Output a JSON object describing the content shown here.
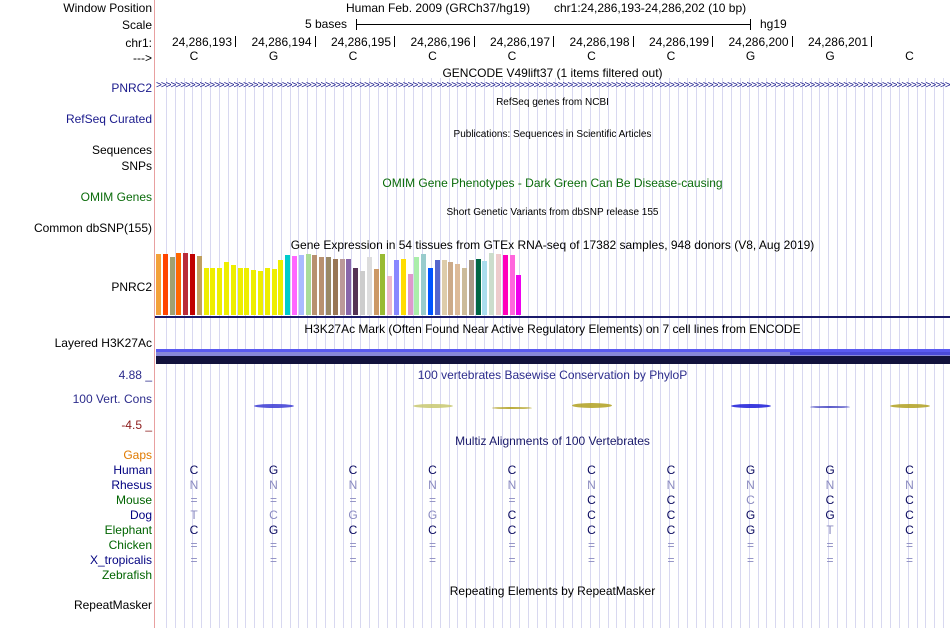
{
  "header": {
    "window_position_label": "Window Position",
    "assembly": "Human Feb. 2009 (GRCh37/hg19)",
    "position": "chr1:24,286,193-24,286,202 (10 bp)",
    "scale_label": "Scale",
    "scale_text": "5 bases",
    "db": "hg19",
    "chrom_label": "chr1:",
    "strand_label": "--->",
    "coords": [
      "24,286,193",
      "24,286,194",
      "24,286,195",
      "24,286,196",
      "24,286,197",
      "24,286,198",
      "24,286,199",
      "24,286,200",
      "24,286,201"
    ],
    "bases": [
      "C",
      "G",
      "C",
      "C",
      "C",
      "C",
      "C",
      "G",
      "G",
      "C"
    ]
  },
  "tracks": {
    "gencode_title": "GENCODE V49lift37 (1 items filtered out)",
    "gencode_gene": "PNRC2",
    "refseq_title": "RefSeq genes from NCBI",
    "refseq_label": "RefSeq Curated",
    "publications_title": "Publications: Sequences in Scientific Articles",
    "sequences_label": "Sequences",
    "snps_label": "SNPs",
    "omim_title": "OMIM Gene Phenotypes - Dark Green Can Be Disease-causing",
    "omim_label": "OMIM Genes",
    "dbsnp_title": "Short Genetic Variants from dbSNP release 155",
    "dbsnp_label": "Common dbSNP(155)",
    "gtex_title": "Gene Expression in 54 tissues from GTEx RNA-seq of 17382 samples, 948 donors (V8, Aug 2019)",
    "gtex_gene": "PNRC2",
    "h3k27ac_title": "H3K27Ac Mark (Often Found Near Active Regulatory Elements) on 7 cell lines from ENCODE",
    "h3k27ac_label": "Layered H3K27Ac",
    "phylop_title": "100 vertebrates Basewise Conservation by PhyloP",
    "cons_label": "100 Vert. Cons",
    "cons_max": "4.88 _",
    "cons_min": "-4.5 _",
    "multiz_title": "Multiz Alignments of 100 Vertebrates",
    "gaps_label": "Gaps",
    "repeat_title": "Repeating Elements by RepeatMasker",
    "repeat_label": "RepeatMasker"
  },
  "gtex_levels": [
    0.99,
    0.99,
    0.93,
    1.0,
    1.0,
    0.99,
    0.95,
    0.75,
    0.76,
    0.76,
    0.85,
    0.81,
    0.75,
    0.75,
    0.72,
    0.71,
    0.76,
    0.74,
    0.88,
    0.96,
    0.95,
    0.97,
    0.99,
    0.96,
    0.93,
    0.93,
    0.9,
    0.91,
    0.91,
    0.76,
    0.71,
    0.94,
    0.74,
    0.98,
    0.63,
    0.89,
    0.91,
    0.66,
    0.93,
    0.99,
    0.75,
    0.89,
    0.89,
    0.85,
    0.83,
    0.76,
    0.88,
    0.91,
    0.87,
    1.0,
    0.99,
    0.97,
    0.96,
    0.64
  ],
  "gtex_colors": [
    "#f3a13a",
    "#ff4400",
    "#a0a070",
    "#ff6600",
    "#ba2c39",
    "#c00000",
    "#c0a060",
    "#eeee00",
    "#eeee00",
    "#eeee00",
    "#eeee00",
    "#eeee00",
    "#eeee00",
    "#eeee00",
    "#eeee00",
    "#eeee00",
    "#eeee00",
    "#eeee00",
    "#eeee00",
    "#00cccc",
    "#ff66ff",
    "#aabbff",
    "#aadd99",
    "#b89070",
    "#b89070",
    "#998866",
    "#997755",
    "#bb9999",
    "#8866aa",
    "#553355",
    "#cccccc",
    "#dddddd",
    "#cc9966",
    "#99bb33",
    "#eebbcc",
    "#8888ff",
    "#ffdd00",
    "#dd99cc",
    "#aaeeaa",
    "#99cccc",
    "#0055ff",
    "#5566cc",
    "#ddccaa",
    "#ccaa88",
    "#ddbb99",
    "#ccbb99",
    "#aa9988",
    "#006644",
    "#aaddee",
    "#ccddcc",
    "#eecccc",
    "#ff00bb",
    "#ff66dd",
    "#ee00ee"
  ],
  "phylop_scores": [
    0,
    0.55,
    -0.2,
    0.45,
    0.15,
    0.6,
    0,
    0.55,
    0.3,
    0.5
  ],
  "species": [
    {
      "name": "Human",
      "color": "#000080",
      "bases": [
        "C",
        "G",
        "C",
        "C",
        "C",
        "C",
        "C",
        "G",
        "G",
        "C"
      ]
    },
    {
      "name": "Rhesus",
      "color": "#000080",
      "bases": [
        "N",
        "N",
        "N",
        "N",
        "N",
        "N",
        "N",
        "N",
        "N",
        "N"
      ]
    },
    {
      "name": "Mouse",
      "color": "#006400",
      "bases": [
        "=",
        "=",
        "=",
        "=",
        "=",
        "C",
        "C",
        "C",
        "C",
        "C"
      ]
    },
    {
      "name": "Dog",
      "color": "#000080",
      "bases": [
        "T",
        "C",
        "G",
        "G",
        "C",
        "C",
        "C",
        "G",
        "G",
        "C"
      ]
    },
    {
      "name": "Elephant",
      "color": "#006400",
      "bases": [
        "C",
        "G",
        "C",
        "C",
        "C",
        "C",
        "C",
        "G",
        "T",
        "C"
      ]
    },
    {
      "name": "Chicken",
      "color": "#006400",
      "bases": [
        "=",
        "=",
        "=",
        "=",
        "=",
        "=",
        "=",
        "=",
        "=",
        "="
      ]
    },
    {
      "name": "X_tropicalis",
      "color": "#000080",
      "bases": [
        "=",
        "=",
        "=",
        "=",
        "=",
        "=",
        "=",
        "=",
        "=",
        "="
      ]
    },
    {
      "name": "Zebrafish",
      "color": "#006400",
      "bases": [
        "",
        "",
        "",
        "",
        "",
        "",
        "",
        "",
        "",
        ""
      ]
    }
  ]
}
